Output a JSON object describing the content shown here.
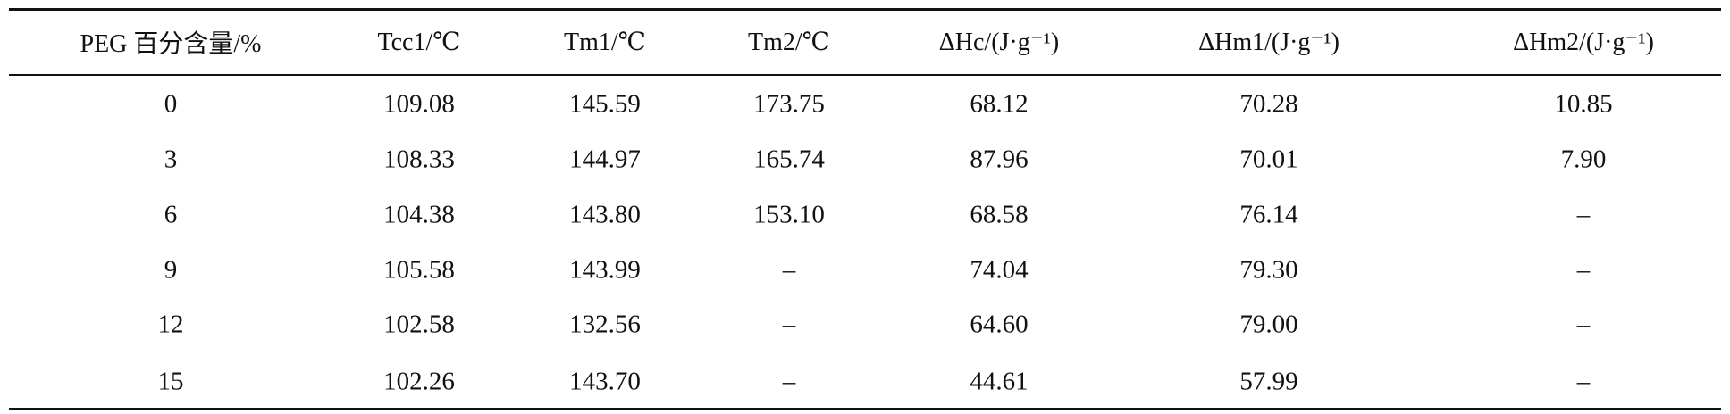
{
  "table": {
    "header": [
      "PEG 百分含量/%",
      "Tcc1/℃",
      "Tm1/℃",
      "Tm2/℃",
      "ΔHc/(J·g⁻¹)",
      "ΔHm1/(J·g⁻¹)",
      "ΔHm2/(J·g⁻¹)"
    ],
    "rows": [
      [
        "0",
        "109.08",
        "145.59",
        "173.75",
        "68.12",
        "70.28",
        "10.85"
      ],
      [
        "3",
        "108.33",
        "144.97",
        "165.74",
        "87.96",
        "70.01",
        "7.90"
      ],
      [
        "6",
        "104.38",
        "143.80",
        "153.10",
        "68.58",
        "76.14",
        "–"
      ],
      [
        "9",
        "105.58",
        "143.99",
        "–",
        "74.04",
        "79.30",
        "–"
      ],
      [
        "12",
        "102.58",
        "132.56",
        "–",
        "64.60",
        "79.00",
        "–"
      ],
      [
        "15",
        "102.26",
        "143.70",
        "–",
        "44.61",
        "57.99",
        "–"
      ]
    ]
  }
}
